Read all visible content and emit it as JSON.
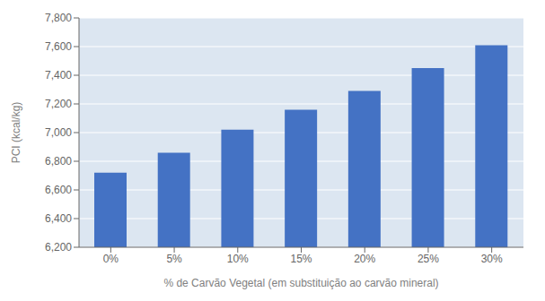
{
  "chart_data": {
    "type": "bar",
    "categories": [
      "0%",
      "5%",
      "10%",
      "15%",
      "20%",
      "25%",
      "30%"
    ],
    "values": [
      6720,
      6860,
      7020,
      7160,
      7290,
      7450,
      7610
    ],
    "color": "#4472C4",
    "xlabel": "% de Carvão Vegetal (em substituição ao carvão mineral)",
    "ylabel": "PCI (kcal/kg)",
    "ylim": [
      6200,
      7800
    ],
    "yticks": [
      {
        "value": 6200,
        "label": "6,200"
      },
      {
        "value": 6400,
        "label": "6,400"
      },
      {
        "value": 6600,
        "label": "6,600"
      },
      {
        "value": 6800,
        "label": "6,800"
      },
      {
        "value": 7000,
        "label": "7,000"
      },
      {
        "value": 7200,
        "label": "7,200"
      },
      {
        "value": 7400,
        "label": "7,400"
      },
      {
        "value": 7600,
        "label": "7,600"
      },
      {
        "value": 7800,
        "label": "7,800"
      }
    ],
    "grid": true
  }
}
